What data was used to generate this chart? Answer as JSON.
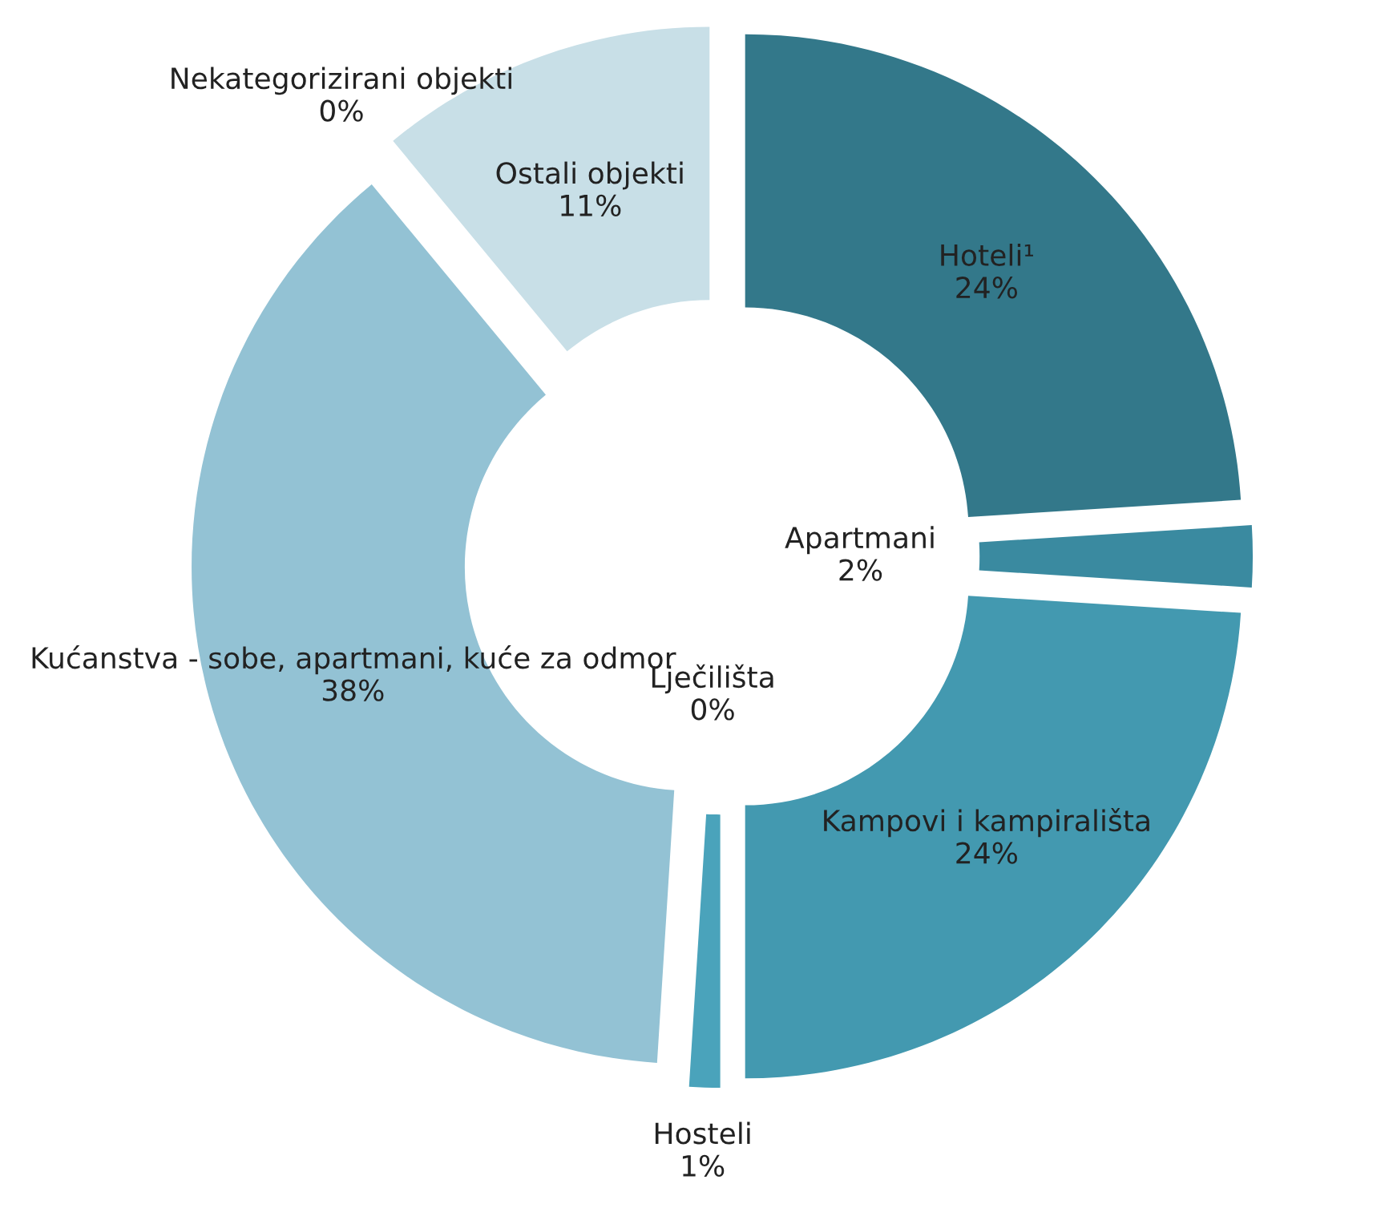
{
  "chart_data": {
    "type": "donut",
    "categories": [
      "Hoteli¹",
      "Apartmani",
      "Kampovi i kampirališta",
      "Hosteli",
      "Lječilišta",
      "Kućanstva - sobe, apartmani, kuće za odmor",
      "Nekategorizirani objekti",
      "Ostali objekti"
    ],
    "values": [
      24,
      2,
      24,
      1,
      0,
      38,
      0,
      11
    ],
    "value_labels": [
      "24%",
      "2%",
      "24%",
      "1%",
      "0%",
      "38%",
      "0%",
      "11%"
    ],
    "colors": [
      "#33788a",
      "#3a8aa0",
      "#4399b0",
      "#4aa3bb",
      "#5ab0c6",
      "#93c2d4",
      "#a8cfdc",
      "#c8dfe7"
    ],
    "legend": false
  }
}
